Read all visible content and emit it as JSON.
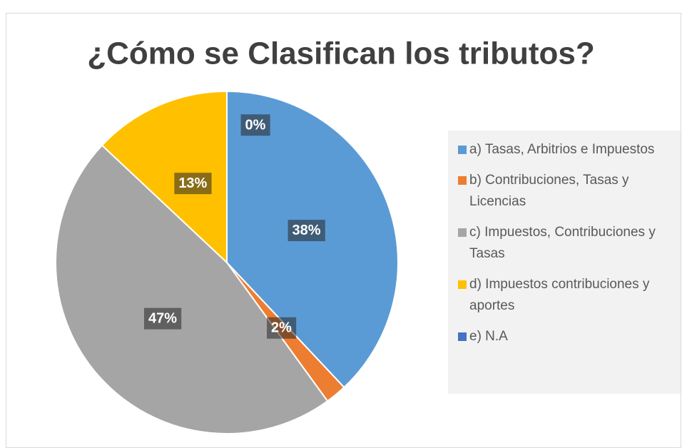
{
  "chart_data": {
    "type": "pie",
    "title": "¿Cómo se Clasifican los tributos?",
    "categories": [
      "a) Tasas, Arbitrios e Impuestos",
      "b) Contribuciones, Tasas y Licencias",
      "c) Impuestos, Contribuciones y Tasas",
      "d) Impuestos contribuciones y aportes",
      "e) N.A"
    ],
    "values": [
      38,
      2,
      47,
      13,
      0
    ],
    "value_labels": [
      "38%",
      "2%",
      "47%",
      "13%",
      "0%"
    ],
    "colors": [
      "#5b9bd5",
      "#ed7d31",
      "#a5a5a5",
      "#ffc000",
      "#4472c4"
    ],
    "legend": "right"
  }
}
